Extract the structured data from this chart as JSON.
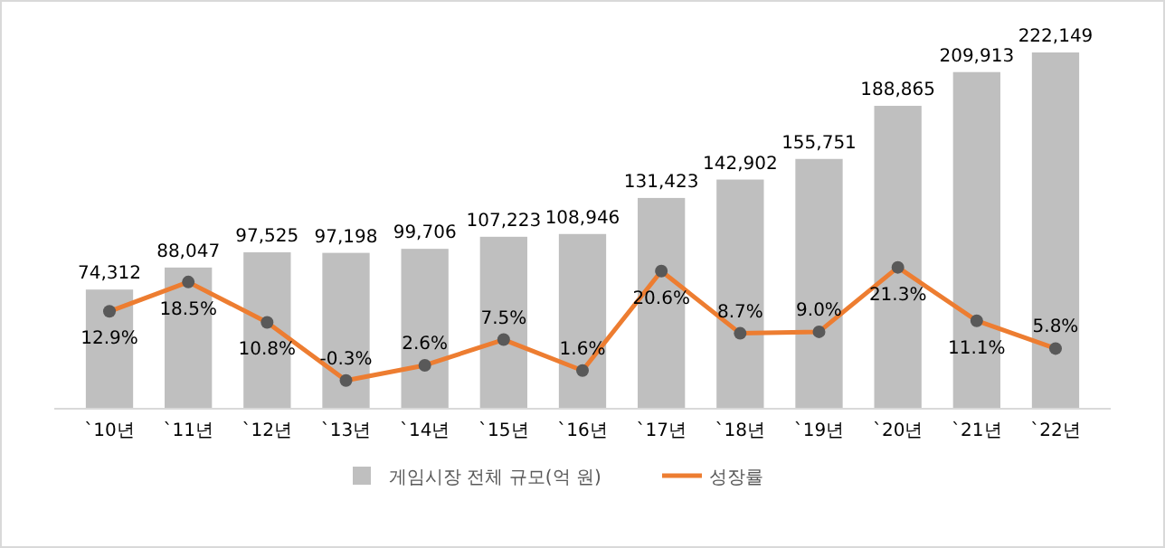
{
  "chart_data": {
    "type": "bar",
    "categories": [
      "`10년",
      "`11년",
      "`12년",
      "`13년",
      "`14년",
      "`15년",
      "`16년",
      "`17년",
      "`18년",
      "`19년",
      "`20년",
      "`21년",
      "`22년"
    ],
    "series": [
      {
        "name": "게임시장 전체 규모(억 원)",
        "color": "#bfbfbf",
        "values": [
          74312,
          88047,
          97525,
          97198,
          99706,
          107223,
          108946,
          131423,
          142902,
          155751,
          188865,
          209913,
          222149
        ],
        "value_labels": [
          "74,312",
          "88,047",
          "97,525",
          "97,198",
          "99,706",
          "107,223",
          "108,946",
          "131,423",
          "142,902",
          "155,751",
          "188,865",
          "209,913",
          "222,149"
        ]
      },
      {
        "name": "성장률",
        "type": "line",
        "axis": "y2",
        "color": "#ed7d31",
        "marker": "circle",
        "values": [
          12.9,
          18.5,
          10.8,
          -0.3,
          2.6,
          7.5,
          1.6,
          20.6,
          8.7,
          9.0,
          21.3,
          11.1,
          5.8
        ],
        "value_labels": [
          "12.9%",
          "18.5%",
          "10.8%",
          "-0.3%",
          "2.6%",
          "7.5%",
          "1.6%",
          "20.6%",
          "8.7%",
          "9.0%",
          "21.3%",
          "11.1%",
          "5.8%"
        ]
      }
    ],
    "legend": "bottom",
    "grid": false
  }
}
